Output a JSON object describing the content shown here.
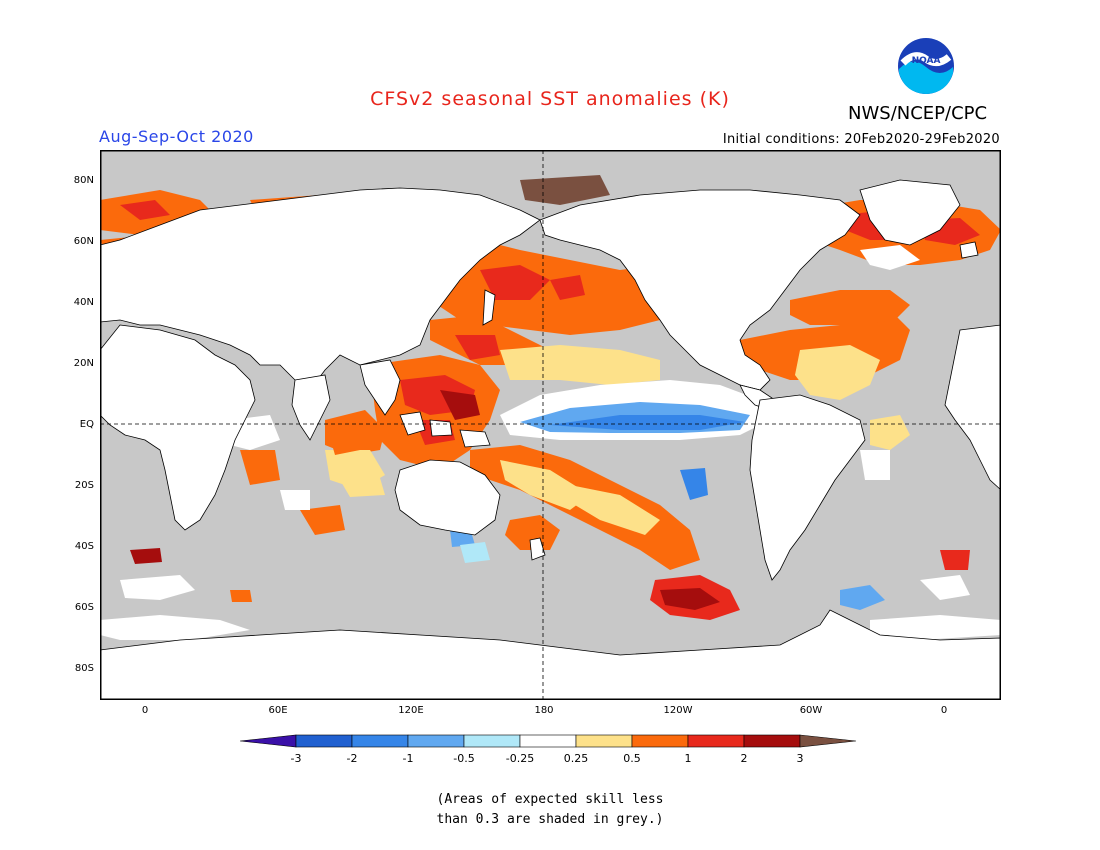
{
  "title": "CFSv2 seasonal SST anomalies (K)",
  "season": "Aug-Sep-Oct 2020",
  "agency": "NWS/NCEP/CPC",
  "initial_conditions": "Initial conditions: 20Feb2020-29Feb2020",
  "logo_text": "NOAA",
  "y_ticks": [
    "80N",
    "60N",
    "40N",
    "20N",
    "EQ",
    "20S",
    "40S",
    "60S",
    "80S"
  ],
  "x_ticks": [
    "0",
    "60E",
    "120E",
    "180",
    "120W",
    "60W",
    "0"
  ],
  "colorbar": {
    "labels": [
      "-3",
      "-2",
      "-1",
      "-0.5",
      "-0.25",
      "0.25",
      "0.5",
      "1",
      "2",
      "3"
    ],
    "colors": [
      "#3a10a8",
      "#2060d0",
      "#3585e8",
      "#60a8f0",
      "#b0e8f8",
      "#ffffff",
      "#fde18a",
      "#fb6a0c",
      "#e8291c",
      "#a50d0d",
      "#7a5040"
    ]
  },
  "note_line1": "(Areas of expected skill less",
  "note_line2": "than 0.3 are shaded in grey.)",
  "colors": {
    "land": "#ffffff",
    "no_skill": "#c8c8c8",
    "warm1": "#fde18a",
    "warm2": "#fb6a0c",
    "warm3": "#e8291c",
    "warm4": "#a50d0d",
    "cool1": "#b0e8f8",
    "cool2": "#60a8f0",
    "cool3": "#3585e8"
  }
}
